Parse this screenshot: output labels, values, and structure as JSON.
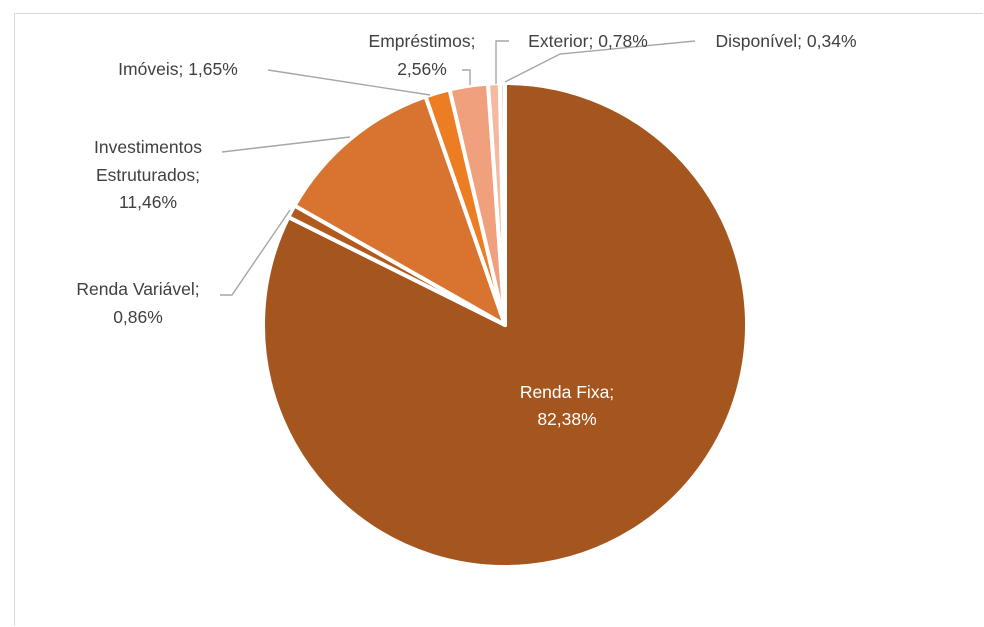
{
  "chart_data": {
    "type": "pie",
    "title": "",
    "slices": [
      {
        "line1": "Renda Fixa;",
        "line2": "82,38%",
        "value": 82.38,
        "color": "#a5561f"
      },
      {
        "line1": "Renda Variável;",
        "line2": "0,86%",
        "value": 0.86,
        "color": "#b2591e"
      },
      {
        "line1": "Investimentos",
        "line1b": "Estruturados;",
        "line2": "11,46%",
        "value": 11.46,
        "color": "#d87430"
      },
      {
        "line1": "Imóveis; 1,65%",
        "value": 1.65,
        "color": "#ed7d22"
      },
      {
        "line1": "Empréstimos;",
        "line2": "2,56%",
        "value": 2.56,
        "color": "#f0a07c"
      },
      {
        "line1": "Exterior; 0,78%",
        "value": 0.78,
        "color": "#f4b9a0"
      },
      {
        "line1": "Disponível; 0,34%",
        "value": 0.34,
        "color": "#f8d3c2"
      }
    ],
    "slice_order": "counterclockwise from 12 o'clock"
  }
}
